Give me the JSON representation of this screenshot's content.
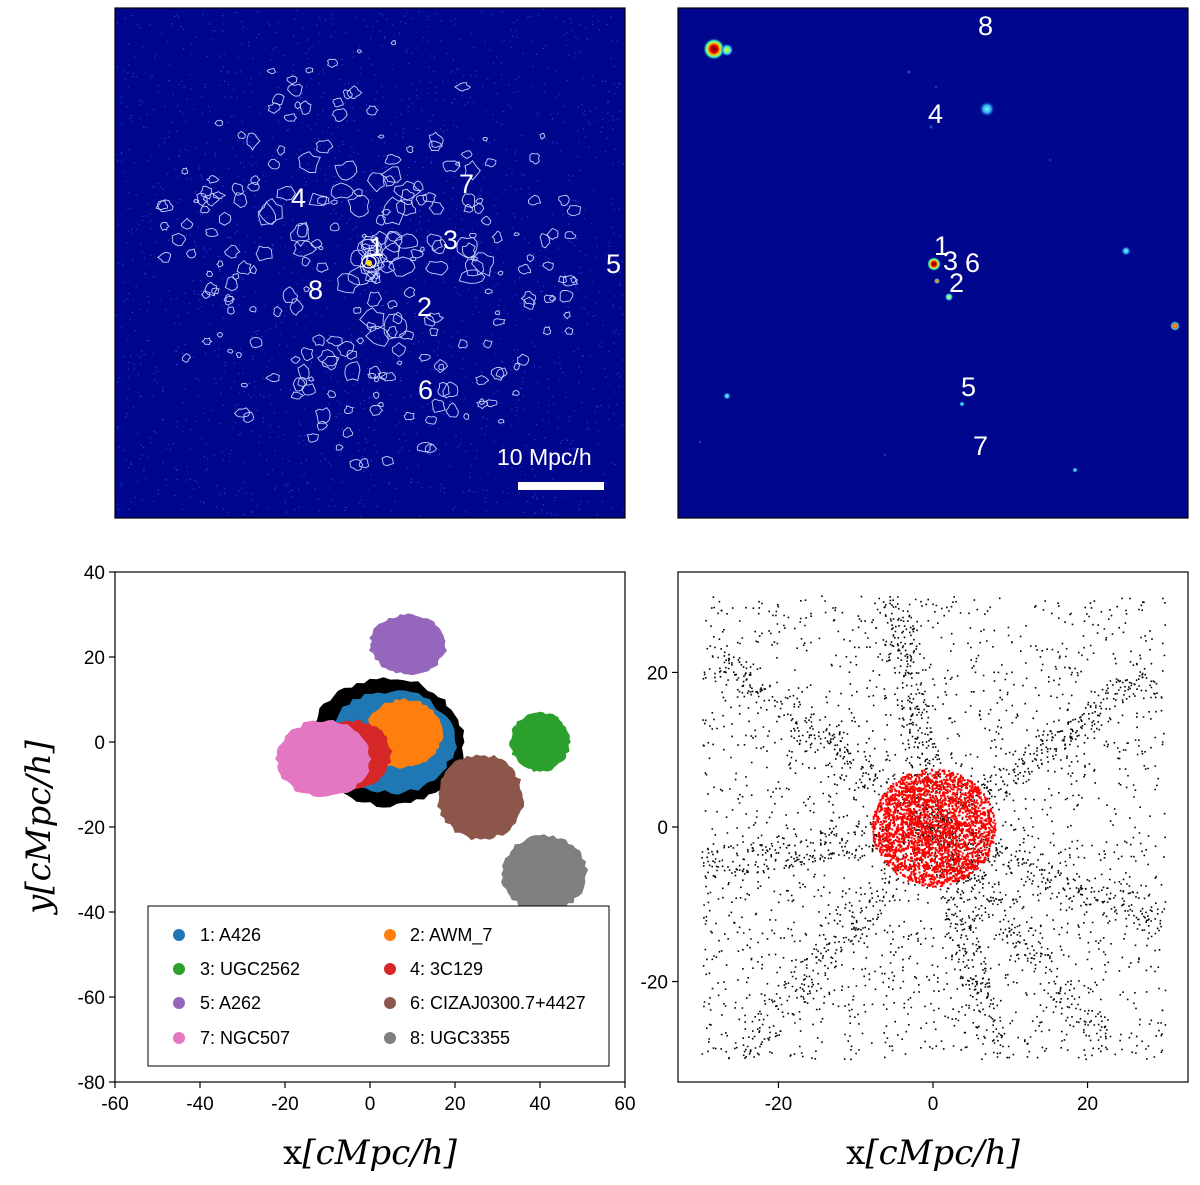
{
  "colors": {
    "map_background": "#00078c",
    "contour": "#c8d2ff",
    "legend_border": "#000000",
    "red_points": "#ff0000",
    "black_points": "#000000"
  },
  "chart_data": [
    {
      "panel": "top-left",
      "type": "heatmap",
      "description_labels": [
        "1",
        "2",
        "3",
        "4",
        "5",
        "6",
        "7",
        "8"
      ],
      "scale_bar_label": "10 Mpc/h",
      "colormap": "jet",
      "contours": true
    },
    {
      "panel": "top-right",
      "type": "heatmap",
      "description_labels": [
        "1",
        "2",
        "3",
        "4",
        "5",
        "6",
        "7",
        "8"
      ],
      "colormap": "jet"
    },
    {
      "panel": "bottom-left",
      "type": "scatter",
      "xlabel": {
        "roman": "x",
        "math": "[cMpc/h]"
      },
      "ylabel": {
        "roman": "y",
        "math": "[cMpc/h]"
      },
      "xlim": [
        -60,
        60
      ],
      "ylim": [
        -80,
        40
      ],
      "xticks": [
        -60,
        -40,
        -20,
        0,
        20,
        40,
        60
      ],
      "yticks": [
        -80,
        -60,
        -40,
        -20,
        0,
        20,
        40
      ],
      "xtick_labels": [
        "-60",
        "-40",
        "-20",
        "0",
        "20",
        "40",
        "60"
      ],
      "ytick_labels": [
        "-80",
        "-60",
        "-40",
        "-20",
        "0",
        "20",
        "40"
      ],
      "legend_position": "lower-center",
      "series": [
        {
          "name": "1: A426",
          "color": "#1f77b4",
          "center": [
            5,
            0
          ],
          "radius": [
            15,
            12
          ]
        },
        {
          "name": "2: AWM_7",
          "color": "#ff7f0e",
          "center": [
            8,
            2
          ],
          "radius": [
            9,
            8
          ]
        },
        {
          "name": "3: UGC2562",
          "color": "#2ca02c",
          "center": [
            40,
            0
          ],
          "radius": [
            7,
            7
          ]
        },
        {
          "name": "4: 3C129",
          "color": "#d62728",
          "center": [
            -4,
            -3
          ],
          "radius": [
            9,
            8
          ]
        },
        {
          "name": "5: A262",
          "color": "#9467bd",
          "center": [
            9,
            23
          ],
          "radius": [
            9,
            7
          ]
        },
        {
          "name": "6: CIZAJ0300.7+4427",
          "color": "#8c564b",
          "center": [
            26,
            -13
          ],
          "radius": [
            10,
            10
          ]
        },
        {
          "name": "7: NGC507",
          "color": "#e377c2",
          "center": [
            -11,
            -4
          ],
          "radius": [
            11,
            9
          ]
        },
        {
          "name": "8: UGC3355",
          "color": "#7f7f7f",
          "center": [
            41,
            -31
          ],
          "radius": [
            10,
            9
          ]
        }
      ],
      "background_region": {
        "color": "#000000",
        "center": [
          4,
          0
        ],
        "radius": [
          18,
          15
        ]
      }
    },
    {
      "panel": "bottom-right",
      "type": "scatter",
      "xlabel": {
        "roman": "x",
        "math": "[cMpc/h]"
      },
      "xlim": [
        -33,
        33
      ],
      "ylim": [
        -33,
        33
      ],
      "xticks": [
        -20,
        0,
        20
      ],
      "yticks": [
        -20,
        0,
        20
      ],
      "xtick_labels": [
        "-20",
        "0",
        "20"
      ],
      "ytick_labels": [
        "-20",
        "0",
        "20"
      ],
      "series": [
        {
          "color": "#000000",
          "extent": [
            -30,
            30
          ]
        },
        {
          "color": "#ff0000",
          "center": [
            0,
            0
          ],
          "radius": 8
        }
      ]
    }
  ]
}
